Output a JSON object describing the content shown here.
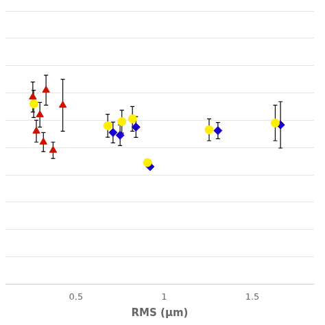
{
  "chart_data": {
    "type": "scatter",
    "xlabel": "RMS (μm)",
    "xlim": [
      0.1,
      1.85
    ],
    "xticks": [
      0.5,
      1,
      1.5
    ],
    "ylim": [
      0.0,
      1.0
    ],
    "yticks": [
      0,
      0.1,
      0.2,
      0.3,
      0.4,
      0.5,
      0.6,
      0.7,
      0.8,
      0.9,
      1
    ],
    "grid": "y",
    "tick_labels": "x",
    "series": [
      {
        "color": "#cc1100",
        "marker": "triangle",
        "x": [
          0.255,
          0.295,
          0.33,
          0.275,
          0.315,
          0.37,
          0.425
        ],
        "values": [
          0.685,
          0.62,
          0.71,
          0.56,
          0.52,
          0.49,
          0.655
        ],
        "yerr": [
          0.055,
          0.045,
          0.055,
          0.04,
          0.035,
          0.03,
          0.095
        ]
      },
      {
        "color": "#ffee00",
        "marker": "circle",
        "x": [
          0.26,
          0.68,
          0.76,
          0.82,
          0.905,
          1.255,
          1.63
        ],
        "values": [
          0.66,
          0.58,
          0.595,
          0.605,
          0.445,
          0.565,
          0.59
        ],
        "yerr": [
          0.05,
          0.042,
          0.042,
          0.045,
          0.0,
          0.04,
          0.065
        ]
      },
      {
        "color": "#1a00cc",
        "marker": "diamond",
        "x": [
          0.71,
          0.75,
          0.84,
          0.92,
          1.305,
          1.66
        ],
        "values": [
          0.555,
          0.545,
          0.575,
          0.43,
          0.562,
          0.583
        ],
        "yerr": [
          0.038,
          0.038,
          0.038,
          0.0,
          0.03,
          0.085
        ]
      }
    ]
  }
}
